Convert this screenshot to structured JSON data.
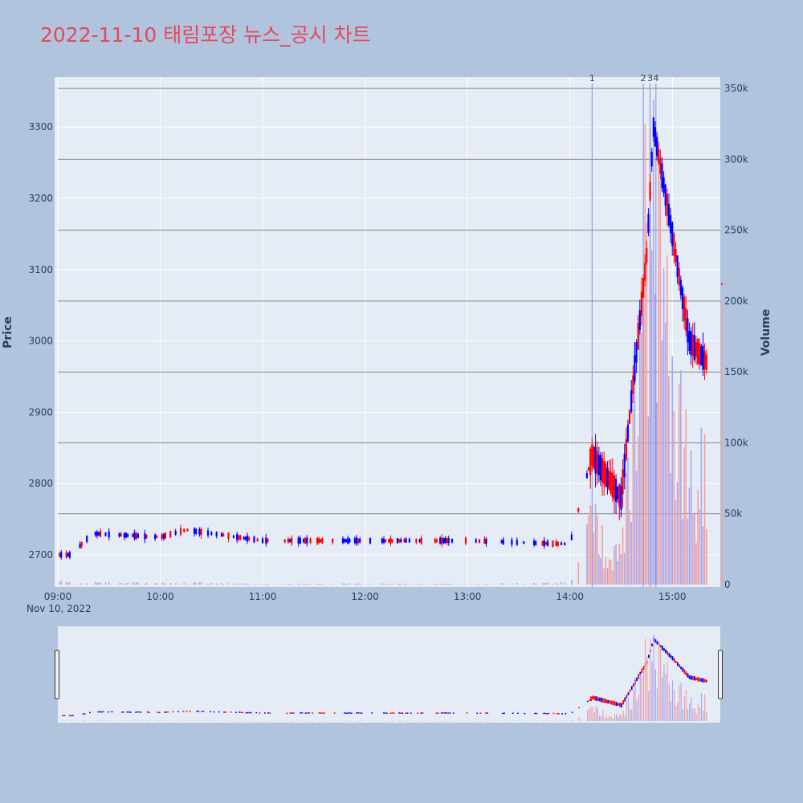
{
  "title": "2022-11-10 태림포장 뉴스_공시 차트",
  "chart_data": {
    "type": "candlestick",
    "title": "2022-11-10 태림포장 뉴스_공시 차트",
    "date_label": "Nov 10, 2022",
    "ylabel": "Price",
    "y2label": "Volume",
    "ylim": [
      2655,
      3370
    ],
    "y2lim": [
      0,
      358000
    ],
    "xlim": [
      "09:00",
      "15:30"
    ],
    "x_ticks": [
      "09:00",
      "10:00",
      "11:00",
      "12:00",
      "13:00",
      "14:00",
      "15:00"
    ],
    "y_ticks": [
      2700,
      2800,
      2900,
      3000,
      3100,
      3200,
      3300
    ],
    "y2_ticks": [
      "0",
      "50k",
      "100k",
      "150k",
      "200k",
      "250k",
      "300k",
      "350k"
    ],
    "colors": {
      "up": "#ff0000",
      "down": "#0000ff",
      "vol_up": "#f4a0a0",
      "vol_down": "#a8a8f0",
      "news_line": "#7b8fe0"
    },
    "news_markers": [
      {
        "label": "1",
        "time": "14:13"
      },
      {
        "label": "2",
        "time": "14:43"
      },
      {
        "label": "3",
        "time": "14:47"
      },
      {
        "label": "4",
        "time": "14:49"
      }
    ],
    "ohlc_samples": [
      {
        "time": "09:00",
        "open": 2720,
        "high": 2720,
        "low": 2695,
        "close": 2700,
        "volume": 3000
      },
      {
        "time": "09:08",
        "open": 2690,
        "high": 2705,
        "low": 2690,
        "close": 2700,
        "volume": 1000
      },
      {
        "time": "09:20",
        "open": 2718,
        "high": 2732,
        "low": 2718,
        "close": 2730,
        "volume": 2000
      },
      {
        "time": "10:00",
        "open": 2718,
        "high": 2726,
        "low": 2718,
        "close": 2725,
        "volume": 1000
      },
      {
        "time": "10:15",
        "open": 2727,
        "high": 2737,
        "low": 2727,
        "close": 2735,
        "volume": 1500
      },
      {
        "time": "11:00",
        "open": 2725,
        "high": 2726,
        "low": 2720,
        "close": 2720,
        "volume": 500
      },
      {
        "time": "12:00",
        "open": 2725,
        "high": 2727,
        "low": 2718,
        "close": 2720,
        "volume": 800
      },
      {
        "time": "13:00",
        "open": 2720,
        "high": 2722,
        "low": 2718,
        "close": 2720,
        "volume": 500
      },
      {
        "time": "14:00",
        "open": 2715,
        "high": 2718,
        "low": 2712,
        "close": 2715,
        "volume": 1500
      },
      {
        "time": "14:13",
        "open": 2730,
        "high": 2850,
        "low": 2725,
        "close": 2840,
        "volume": 60000
      },
      {
        "time": "14:30",
        "open": 2770,
        "high": 2790,
        "low": 2755,
        "close": 2780,
        "volume": 25000
      },
      {
        "time": "14:45",
        "open": 2960,
        "high": 3130,
        "low": 2940,
        "close": 3120,
        "volume": 330000
      },
      {
        "time": "14:49",
        "open": 3230,
        "high": 3330,
        "low": 3210,
        "close": 3300,
        "volume": 320000
      },
      {
        "time": "15:00",
        "open": 3160,
        "high": 3200,
        "low": 3140,
        "close": 3150,
        "volume": 160000
      },
      {
        "time": "15:10",
        "open": 3010,
        "high": 3040,
        "low": 2980,
        "close": 3000,
        "volume": 120000
      },
      {
        "time": "15:20",
        "open": 2950,
        "high": 2985,
        "low": 2920,
        "close": 2970,
        "volume": 90000
      },
      {
        "time": "15:30",
        "open": 3080,
        "high": 3080,
        "low": 3080,
        "close": 3080,
        "volume": 200000
      }
    ]
  }
}
